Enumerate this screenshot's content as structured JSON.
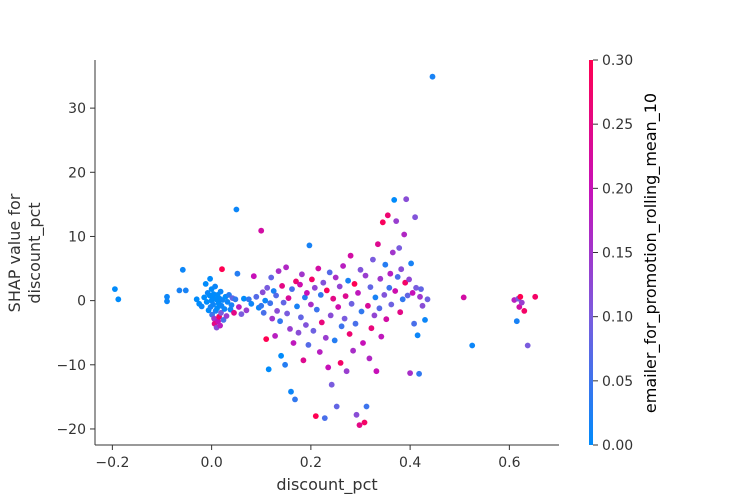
{
  "chart_data": {
    "type": "scatter",
    "title": "",
    "xlabel": "discount_pct",
    "ylabel": [
      "SHAP value for",
      "discount_pct"
    ],
    "xlim": [
      -0.235,
      0.7
    ],
    "ylim": [
      -22.5,
      37.5
    ],
    "xticks": [
      -0.2,
      0.0,
      0.2,
      0.4,
      0.6
    ],
    "xtick_labels": [
      "−0.2",
      "0.0",
      "0.2",
      "0.4",
      "0.6"
    ],
    "yticks": [
      -20,
      -10,
      0,
      10,
      20,
      30
    ],
    "ytick_labels": [
      "−20",
      "−10",
      "0",
      "10",
      "20",
      "30"
    ],
    "grid": false,
    "colorbar": {
      "label": "emailer_for_promotion_rolling_mean_10",
      "range": [
        0.0,
        0.3
      ],
      "ticks": [
        0.0,
        0.05,
        0.1,
        0.15,
        0.2,
        0.25,
        0.3
      ],
      "tick_labels": [
        "0.00",
        "0.05",
        "0.10",
        "0.15",
        "0.20",
        "0.25",
        "0.30"
      ],
      "colors": [
        "#008bfb",
        "#7a5cde",
        "#c710b8",
        "#ff0052"
      ]
    },
    "points": [
      [
        -0.195,
        1.8,
        0.0
      ],
      [
        -0.188,
        0.2,
        0.0
      ],
      [
        -0.09,
        0.6,
        0.01
      ],
      [
        -0.09,
        -0.1,
        0.01
      ],
      [
        -0.065,
        1.6,
        0.02
      ],
      [
        -0.058,
        4.8,
        0.01
      ],
      [
        -0.052,
        1.6,
        0.02
      ],
      [
        -0.03,
        0.2,
        0.0
      ],
      [
        -0.025,
        -0.5,
        0.0
      ],
      [
        -0.02,
        -0.9,
        0.01
      ],
      [
        -0.015,
        0.5,
        0.0
      ],
      [
        -0.012,
        2.6,
        0.0
      ],
      [
        -0.01,
        -0.2,
        0.0
      ],
      [
        -0.008,
        1.2,
        0.01
      ],
      [
        -0.006,
        -1.5,
        0.0
      ],
      [
        -0.004,
        0.8,
        0.0
      ],
      [
        -0.003,
        3.4,
        0.0
      ],
      [
        -0.002,
        -1.0,
        0.02
      ],
      [
        0.0,
        0.0,
        0.0
      ],
      [
        0.0,
        1.8,
        0.0
      ],
      [
        0.001,
        -2.2,
        0.05
      ],
      [
        0.002,
        0.4,
        0.0
      ],
      [
        0.003,
        -0.6,
        0.01
      ],
      [
        0.004,
        1.0,
        0.0
      ],
      [
        0.005,
        -2.8,
        0.15
      ],
      [
        0.006,
        -3.6,
        0.25
      ],
      [
        0.007,
        2.2,
        0.01
      ],
      [
        0.008,
        -1.6,
        0.02
      ],
      [
        0.009,
        0.2,
        0.0
      ],
      [
        0.01,
        -4.2,
        0.12
      ],
      [
        0.011,
        -1.2,
        0.0
      ],
      [
        0.012,
        0.9,
        0.0
      ],
      [
        0.013,
        -3.2,
        0.2
      ],
      [
        0.014,
        -0.4,
        0.0
      ],
      [
        0.015,
        -2.5,
        0.28
      ],
      [
        0.016,
        0.3,
        0.0
      ],
      [
        0.017,
        -3.9,
        0.18
      ],
      [
        0.018,
        1.4,
        0.01
      ],
      [
        0.019,
        -1.9,
        0.1
      ],
      [
        0.02,
        -0.8,
        0.01
      ],
      [
        0.021,
        4.9,
        0.3
      ],
      [
        0.022,
        0.1,
        0.01
      ],
      [
        0.024,
        -3.0,
        0.06
      ],
      [
        0.026,
        -1.3,
        0.01
      ],
      [
        0.028,
        0.6,
        0.0
      ],
      [
        0.03,
        -2.4,
        0.14
      ],
      [
        0.032,
        -0.2,
        0.01
      ],
      [
        0.035,
        0.9,
        0.03
      ],
      [
        0.038,
        -1.4,
        0.01
      ],
      [
        0.04,
        -0.7,
        0.02
      ],
      [
        0.042,
        0.4,
        0.08
      ],
      [
        0.045,
        -1.9,
        0.25
      ],
      [
        0.048,
        0.2,
        0.04
      ],
      [
        0.05,
        14.2,
        0.01
      ],
      [
        0.052,
        4.2,
        0.03
      ],
      [
        0.055,
        -1.0,
        0.18
      ],
      [
        0.06,
        -2.1,
        0.1
      ],
      [
        0.065,
        0.3,
        0.0
      ],
      [
        0.07,
        -1.5,
        0.14
      ],
      [
        0.075,
        0.2,
        0.04
      ],
      [
        0.08,
        -0.5,
        0.01
      ],
      [
        0.085,
        3.8,
        0.2
      ],
      [
        0.09,
        0.6,
        0.07
      ],
      [
        0.095,
        -1.1,
        0.01
      ],
      [
        0.1,
        10.9,
        0.22
      ],
      [
        0.1,
        -0.8,
        0.04
      ],
      [
        0.103,
        1.3,
        0.12
      ],
      [
        0.105,
        -1.9,
        0.06
      ],
      [
        0.108,
        0.0,
        0.01
      ],
      [
        0.11,
        -6.0,
        0.3
      ],
      [
        0.112,
        2.0,
        0.1
      ],
      [
        0.115,
        -10.7,
        0.0
      ],
      [
        0.118,
        -0.4,
        0.05
      ],
      [
        0.12,
        3.6,
        0.08
      ],
      [
        0.122,
        -2.8,
        0.15
      ],
      [
        0.125,
        1.5,
        0.02
      ],
      [
        0.128,
        -5.5,
        0.18
      ],
      [
        0.13,
        0.8,
        0.07
      ],
      [
        0.132,
        -1.6,
        0.12
      ],
      [
        0.135,
        4.6,
        0.16
      ],
      [
        0.138,
        -3.2,
        0.04
      ],
      [
        0.14,
        -8.6,
        0.0
      ],
      [
        0.142,
        2.3,
        0.25
      ],
      [
        0.145,
        -0.3,
        0.08
      ],
      [
        0.148,
        -10.0,
        0.03
      ],
      [
        0.15,
        5.2,
        0.17
      ],
      [
        0.152,
        -2.0,
        0.1
      ],
      [
        0.155,
        0.4,
        0.23
      ],
      [
        0.158,
        -4.4,
        0.14
      ],
      [
        0.16,
        -14.2,
        0.01
      ],
      [
        0.162,
        1.8,
        0.06
      ],
      [
        0.165,
        -6.6,
        0.19
      ],
      [
        0.168,
        -15.4,
        0.04
      ],
      [
        0.17,
        3.0,
        0.27
      ],
      [
        0.172,
        -0.9,
        0.02
      ],
      [
        0.175,
        -5.0,
        0.12
      ],
      [
        0.178,
        2.5,
        0.21
      ],
      [
        0.18,
        -2.6,
        0.08
      ],
      [
        0.182,
        4.1,
        0.15
      ],
      [
        0.185,
        -9.3,
        0.24
      ],
      [
        0.188,
        0.5,
        0.03
      ],
      [
        0.19,
        -3.8,
        0.11
      ],
      [
        0.192,
        1.2,
        0.2
      ],
      [
        0.195,
        -6.9,
        0.07
      ],
      [
        0.197,
        8.6,
        0.02
      ],
      [
        0.2,
        -0.6,
        0.16
      ],
      [
        0.202,
        3.3,
        0.28
      ],
      [
        0.205,
        -4.7,
        0.09
      ],
      [
        0.208,
        2.0,
        0.13
      ],
      [
        0.21,
        -18.0,
        0.3
      ],
      [
        0.212,
        -1.4,
        0.05
      ],
      [
        0.215,
        5.0,
        0.22
      ],
      [
        0.218,
        -8.0,
        0.18
      ],
      [
        0.22,
        0.9,
        0.04
      ],
      [
        0.222,
        -3.4,
        0.26
      ],
      [
        0.225,
        2.8,
        0.11
      ],
      [
        0.228,
        -18.3,
        0.06
      ],
      [
        0.23,
        -5.8,
        0.14
      ],
      [
        0.232,
        1.6,
        0.29
      ],
      [
        0.235,
        -10.4,
        0.2
      ],
      [
        0.238,
        4.4,
        0.07
      ],
      [
        0.24,
        -2.3,
        0.12
      ],
      [
        0.242,
        -13.1,
        0.1
      ],
      [
        0.245,
        0.3,
        0.25
      ],
      [
        0.248,
        -6.2,
        0.03
      ],
      [
        0.25,
        3.6,
        0.16
      ],
      [
        0.252,
        -16.5,
        0.08
      ],
      [
        0.255,
        -1.0,
        0.21
      ],
      [
        0.258,
        2.2,
        0.13
      ],
      [
        0.26,
        -9.7,
        0.28
      ],
      [
        0.262,
        -4.0,
        0.05
      ],
      [
        0.265,
        5.4,
        0.18
      ],
      [
        0.268,
        -2.8,
        0.1
      ],
      [
        0.27,
        0.7,
        0.24
      ],
      [
        0.272,
        -11.0,
        0.14
      ],
      [
        0.275,
        3.1,
        0.02
      ],
      [
        0.278,
        -5.2,
        0.27
      ],
      [
        0.28,
        7.0,
        0.22
      ],
      [
        0.282,
        -0.5,
        0.09
      ],
      [
        0.285,
        -7.8,
        0.16
      ],
      [
        0.288,
        2.6,
        0.3
      ],
      [
        0.29,
        -3.6,
        0.06
      ],
      [
        0.292,
        -17.8,
        0.12
      ],
      [
        0.295,
        1.2,
        0.19
      ],
      [
        0.298,
        -19.4,
        0.25
      ],
      [
        0.3,
        4.8,
        0.11
      ],
      [
        0.302,
        -1.7,
        0.04
      ],
      [
        0.305,
        -6.6,
        0.2
      ],
      [
        0.308,
        -19.0,
        0.28
      ],
      [
        0.31,
        3.9,
        0.14
      ],
      [
        0.312,
        -16.5,
        0.05
      ],
      [
        0.315,
        -0.8,
        0.23
      ],
      [
        0.318,
        -9.0,
        0.17
      ],
      [
        0.32,
        2.1,
        0.08
      ],
      [
        0.322,
        -4.3,
        0.26
      ],
      [
        0.325,
        6.4,
        0.1
      ],
      [
        0.328,
        -2.3,
        0.13
      ],
      [
        0.33,
        0.5,
        0.02
      ],
      [
        0.332,
        -11.0,
        0.2
      ],
      [
        0.335,
        8.8,
        0.24
      ],
      [
        0.338,
        -1.2,
        0.07
      ],
      [
        0.34,
        3.4,
        0.15
      ],
      [
        0.342,
        -5.6,
        0.19
      ],
      [
        0.345,
        12.2,
        0.29
      ],
      [
        0.348,
        0.9,
        0.11
      ],
      [
        0.35,
        5.6,
        0.03
      ],
      [
        0.352,
        -2.9,
        0.22
      ],
      [
        0.355,
        13.3,
        0.27
      ],
      [
        0.358,
        2.0,
        0.05
      ],
      [
        0.36,
        4.2,
        0.18
      ],
      [
        0.362,
        -0.6,
        0.09
      ],
      [
        0.365,
        7.5,
        0.15
      ],
      [
        0.368,
        15.7,
        0.0
      ],
      [
        0.37,
        1.5,
        0.21
      ],
      [
        0.372,
        12.4,
        0.14
      ],
      [
        0.375,
        3.7,
        0.06
      ],
      [
        0.378,
        8.2,
        0.1
      ],
      [
        0.38,
        -1.8,
        0.25
      ],
      [
        0.382,
        4.9,
        0.12
      ],
      [
        0.385,
        0.2,
        0.04
      ],
      [
        0.388,
        10.3,
        0.17
      ],
      [
        0.39,
        2.8,
        0.28
      ],
      [
        0.392,
        15.8,
        0.12
      ],
      [
        0.395,
        0.8,
        0.08
      ],
      [
        0.398,
        3.3,
        0.13
      ],
      [
        0.4,
        -11.3,
        0.16
      ],
      [
        0.402,
        5.8,
        0.02
      ],
      [
        0.405,
        1.2,
        0.2
      ],
      [
        0.408,
        -3.6,
        0.06
      ],
      [
        0.41,
        13.0,
        0.11
      ],
      [
        0.412,
        2.0,
        0.1
      ],
      [
        0.415,
        -5.4,
        0.01
      ],
      [
        0.418,
        -11.4,
        0.04
      ],
      [
        0.42,
        0.6,
        0.15
      ],
      [
        0.422,
        1.8,
        0.08
      ],
      [
        0.425,
        -0.8,
        0.12
      ],
      [
        0.43,
        -3.0,
        0.01
      ],
      [
        0.435,
        0.2,
        0.09
      ],
      [
        0.445,
        34.9,
        0.02
      ],
      [
        0.508,
        0.5,
        0.22
      ],
      [
        0.525,
        -7.0,
        0.01
      ],
      [
        0.61,
        0.1,
        0.18
      ],
      [
        0.615,
        -3.2,
        0.02
      ],
      [
        0.618,
        0.3,
        0.1
      ],
      [
        0.62,
        -1.0,
        0.22
      ],
      [
        0.622,
        0.6,
        0.3
      ],
      [
        0.625,
        -0.3,
        0.14
      ],
      [
        0.63,
        -1.6,
        0.28
      ],
      [
        0.637,
        -7.0,
        0.1
      ],
      [
        0.652,
        0.6,
        0.28
      ]
    ]
  }
}
